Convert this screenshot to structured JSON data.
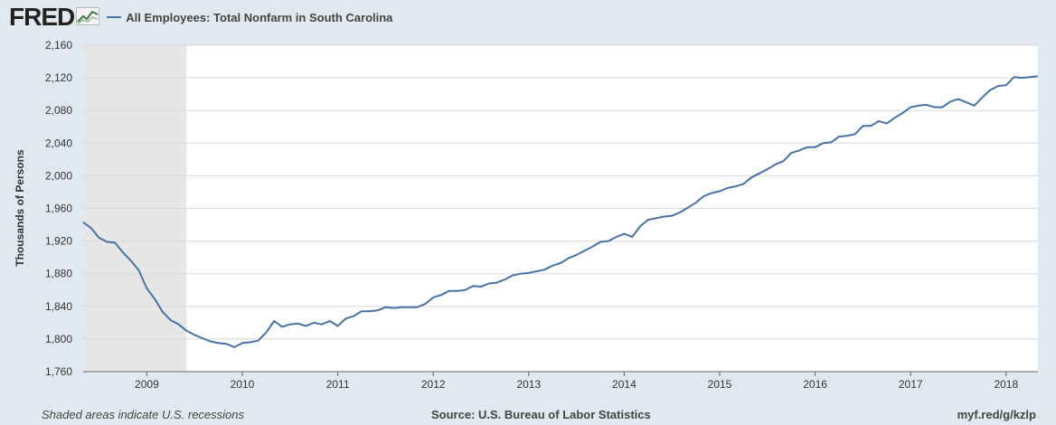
{
  "header": {
    "logo": "FRED",
    "logo_icon": "graph-icon"
  },
  "colors": {
    "background": "#e1e9f0",
    "plot_background": "#ffffff",
    "series": "#4572a7",
    "recession": "#e6e6e6",
    "grid": "#d8d8d8"
  },
  "footer": {
    "note": "Shaded areas indicate U.S. recessions",
    "source": "Source: U.S. Bureau of Labor Statistics",
    "url": "myf.red/g/kzlp"
  },
  "chart_data": {
    "type": "line",
    "title": "",
    "xlabel": "",
    "ylabel": "Thousands of Persons",
    "xlim": [
      "2008-05",
      "2018-05"
    ],
    "ylim": [
      1760,
      2160
    ],
    "yticks": [
      1760,
      1800,
      1840,
      1880,
      1920,
      1960,
      2000,
      2040,
      2080,
      2120,
      2160
    ],
    "ytick_labels": [
      "1,760",
      "1,800",
      "1,840",
      "1,880",
      "1,920",
      "1,960",
      "2,000",
      "2,040",
      "2,080",
      "2,120",
      "2,160"
    ],
    "xtick_labels": [
      "2009",
      "2010",
      "2011",
      "2012",
      "2013",
      "2014",
      "2015",
      "2016",
      "2017",
      "2018"
    ],
    "grid": true,
    "legend_position": "top-left",
    "recessions": [
      {
        "start": "2008-05",
        "end": "2009-06"
      }
    ],
    "series": [
      {
        "name": "All Employees: Total Nonfarm in South Carolina",
        "x": [
          "2008-05",
          "2008-06",
          "2008-07",
          "2008-08",
          "2008-09",
          "2008-10",
          "2008-11",
          "2008-12",
          "2009-01",
          "2009-02",
          "2009-03",
          "2009-04",
          "2009-05",
          "2009-06",
          "2009-07",
          "2009-08",
          "2009-09",
          "2009-10",
          "2009-11",
          "2009-12",
          "2010-01",
          "2010-02",
          "2010-03",
          "2010-04",
          "2010-05",
          "2010-06",
          "2010-07",
          "2010-08",
          "2010-09",
          "2010-10",
          "2010-11",
          "2010-12",
          "2011-01",
          "2011-02",
          "2011-03",
          "2011-04",
          "2011-05",
          "2011-06",
          "2011-07",
          "2011-08",
          "2011-09",
          "2011-10",
          "2011-11",
          "2011-12",
          "2012-01",
          "2012-02",
          "2012-03",
          "2012-04",
          "2012-05",
          "2012-06",
          "2012-07",
          "2012-08",
          "2012-09",
          "2012-10",
          "2012-11",
          "2012-12",
          "2013-01",
          "2013-02",
          "2013-03",
          "2013-04",
          "2013-05",
          "2013-06",
          "2013-07",
          "2013-08",
          "2013-09",
          "2013-10",
          "2013-11",
          "2013-12",
          "2014-01",
          "2014-02",
          "2014-03",
          "2014-04",
          "2014-05",
          "2014-06",
          "2014-07",
          "2014-08",
          "2014-09",
          "2014-10",
          "2014-11",
          "2014-12",
          "2015-01",
          "2015-02",
          "2015-03",
          "2015-04",
          "2015-05",
          "2015-06",
          "2015-07",
          "2015-08",
          "2015-09",
          "2015-10",
          "2015-11",
          "2015-12",
          "2016-01",
          "2016-02",
          "2016-03",
          "2016-04",
          "2016-05",
          "2016-06",
          "2016-07",
          "2016-08",
          "2016-09",
          "2016-10",
          "2016-11",
          "2016-12",
          "2017-01",
          "2017-02",
          "2017-03",
          "2017-04",
          "2017-05",
          "2017-06",
          "2017-07",
          "2017-08",
          "2017-09",
          "2017-10",
          "2017-11",
          "2017-12",
          "2018-01",
          "2018-02",
          "2018-03",
          "2018-04",
          "2018-05"
        ],
        "values": [
          1943,
          1936,
          1924,
          1919,
          1918,
          1906,
          1896,
          1884,
          1862,
          1849,
          1833,
          1823,
          1818,
          1810,
          1805,
          1801,
          1797,
          1795,
          1794,
          1790,
          1795,
          1796,
          1798,
          1808,
          1822,
          1815,
          1818,
          1819,
          1816,
          1820,
          1818,
          1822,
          1816,
          1825,
          1828,
          1834,
          1834,
          1835,
          1839,
          1838,
          1839,
          1839,
          1839,
          1843,
          1851,
          1854,
          1859,
          1859,
          1860,
          1865,
          1864,
          1868,
          1869,
          1873,
          1878,
          1880,
          1881,
          1883,
          1885,
          1890,
          1893,
          1899,
          1903,
          1908,
          1913,
          1919,
          1920,
          1925,
          1929,
          1925,
          1938,
          1946,
          1948,
          1950,
          1951,
          1955,
          1961,
          1967,
          1975,
          1979,
          1981,
          1985,
          1987,
          1990,
          1998,
          2003,
          2008,
          2014,
          2018,
          2028,
          2031,
          2035,
          2035,
          2040,
          2041,
          2048,
          2049,
          2051,
          2061,
          2061,
          2067,
          2064,
          2071,
          2077,
          2084,
          2086,
          2087,
          2084,
          2084,
          2091,
          2094,
          2090,
          2086,
          2096,
          2105,
          2110,
          2111,
          2121,
          2120,
          2121,
          2122
        ]
      }
    ]
  }
}
